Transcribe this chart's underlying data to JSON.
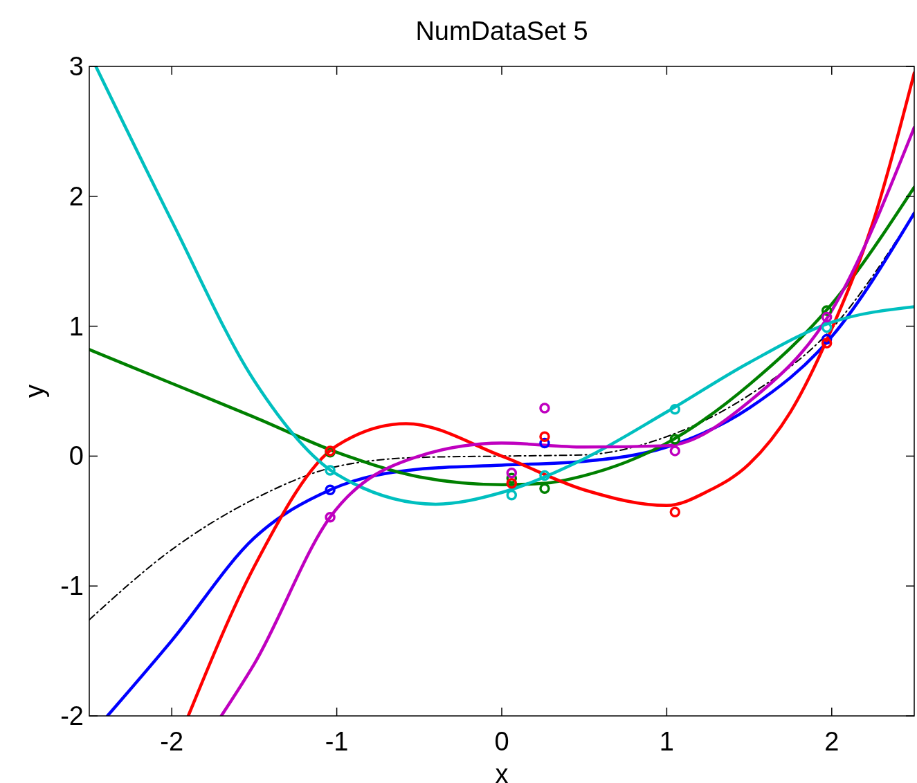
{
  "chart_data": {
    "type": "line",
    "title": "NumDataSet 5",
    "xlabel": "x",
    "ylabel": "y",
    "xlim": [
      -2.5,
      2.5
    ],
    "ylim": [
      -2,
      3
    ],
    "xticks": [
      -2,
      -1,
      0,
      1,
      2
    ],
    "yticks": [
      -2,
      -1,
      0,
      1,
      2,
      3
    ],
    "grid": false,
    "series": [
      {
        "color": "#000000",
        "line_style": "dashdot",
        "x": [
          -2.5,
          -2,
          -1.5,
          -1,
          -0.5,
          0,
          0.5,
          1,
          1.5,
          2,
          2.5
        ],
        "values": [
          -1.26,
          -0.72,
          -0.33,
          -0.08,
          -0.01,
          0,
          0.01,
          0.15,
          0.47,
          0.98,
          1.87
        ]
      },
      {
        "color": "#0000ff",
        "x": [
          -2.39,
          -2,
          -1.5,
          -1.04,
          -0.5,
          0,
          0.5,
          1,
          1.5,
          2,
          2.5
        ],
        "values": [
          -2,
          -1.42,
          -0.63,
          -0.26,
          -0.1,
          -0.07,
          -0.04,
          0.07,
          0.37,
          0.92,
          1.87
        ]
      },
      {
        "color": "#008000",
        "x": [
          -2.5,
          -2,
          -1.5,
          -1,
          -0.5,
          0,
          0.25,
          0.5,
          1,
          1.5,
          2,
          2.5
        ],
        "values": [
          0.82,
          0.56,
          0.3,
          0.03,
          -0.16,
          -0.22,
          -0.21,
          -0.15,
          0.1,
          0.55,
          1.17,
          2.07
        ]
      },
      {
        "color": "#ff0000",
        "x": [
          -1.9,
          -1.5,
          -1,
          -0.58,
          0,
          0.5,
          1,
          1.25,
          1.5,
          1.75,
          2,
          2.25,
          2.5
        ],
        "values": [
          -2,
          -0.85,
          0.08,
          0.25,
          0,
          -0.26,
          -0.38,
          -0.27,
          -0.06,
          0.34,
          0.98,
          1.8,
          2.95
        ]
      },
      {
        "color": "#00bfbf",
        "x": [
          -2.46,
          -2,
          -1.5,
          -1,
          -0.4,
          0,
          0.5,
          1,
          1.5,
          2,
          2.5
        ],
        "values": [
          3,
          1.81,
          0.58,
          -0.14,
          -0.37,
          -0.28,
          -0.02,
          0.34,
          0.72,
          1.03,
          1.15
        ]
      },
      {
        "color": "#bf00bf",
        "x": [
          -1.7,
          -1.5,
          -1.04,
          -0.5,
          0,
          0.5,
          1,
          1.5,
          2,
          2.5
        ],
        "values": [
          -2,
          -1.6,
          -0.47,
          0,
          0.1,
          0.07,
          0.08,
          0.42,
          1.12,
          2.53
        ]
      },
      {
        "type": "scatter",
        "marker": "circle",
        "color": "#0000ff",
        "x": [
          -1.04,
          0.06,
          0.26,
          1.05,
          1.97
        ],
        "values": [
          -0.26,
          null,
          0.1,
          null,
          0.9
        ]
      },
      {
        "type": "scatter",
        "marker": "circle",
        "color": "#008000",
        "x": [
          -1.04,
          0.06,
          0.26,
          1.05,
          1.97
        ],
        "values": [
          0.03,
          -0.17,
          -0.25,
          0.13,
          1.12
        ]
      },
      {
        "type": "scatter",
        "marker": "circle",
        "color": "#ff0000",
        "x": [
          -1.04,
          0.06,
          0.26,
          1.05,
          1.97
        ],
        "values": [
          0.04,
          -0.21,
          0.15,
          -0.43,
          0.87
        ]
      },
      {
        "type": "scatter",
        "marker": "circle",
        "color": "#00bfbf",
        "x": [
          -1.04,
          0.06,
          0.26,
          1.05,
          1.97
        ],
        "values": [
          -0.11,
          -0.3,
          -0.15,
          0.36,
          0.99
        ]
      },
      {
        "type": "scatter",
        "marker": "circle",
        "color": "#bf00bf",
        "x": [
          -1.04,
          0.06,
          0.26,
          1.05,
          1.97
        ],
        "values": [
          -0.47,
          -0.13,
          0.37,
          0.04,
          1.07
        ]
      }
    ]
  }
}
